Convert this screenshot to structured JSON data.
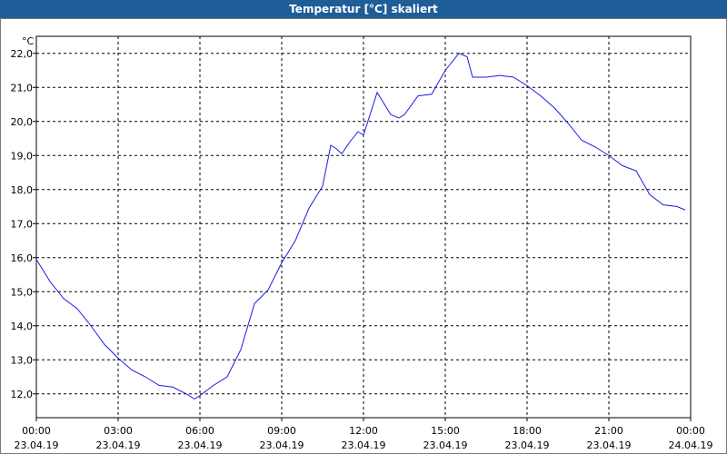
{
  "chart_data": {
    "type": "line",
    "title": "Temperatur [°C] skaliert",
    "y_unit": "°C",
    "x": [
      0,
      0.5,
      1,
      1.5,
      2,
      2.5,
      3,
      3.5,
      4,
      4.5,
      5,
      5.5,
      5.8,
      6,
      6.5,
      7,
      7.5,
      8,
      8.5,
      9,
      9.5,
      10,
      10.5,
      10.8,
      11,
      11.2,
      11.5,
      11.8,
      12,
      12.5,
      13,
      13.3,
      13.5,
      14,
      14.5,
      15,
      15.5,
      15.8,
      16,
      16.5,
      17,
      17.5,
      18,
      18.5,
      19,
      19.5,
      20,
      20.5,
      21,
      21.5,
      22,
      22.5,
      23,
      23.5,
      23.8
    ],
    "series": [
      {
        "color": "#1a1ae6",
        "values": [
          15.95,
          15.3,
          14.8,
          14.5,
          14.0,
          13.45,
          13.05,
          12.7,
          12.5,
          12.25,
          12.2,
          12.0,
          11.85,
          11.95,
          12.25,
          12.5,
          13.3,
          14.65,
          15.05,
          15.85,
          16.5,
          17.45,
          18.1,
          19.3,
          19.2,
          19.05,
          19.4,
          19.7,
          19.6,
          20.85,
          20.2,
          20.1,
          20.2,
          20.75,
          20.8,
          21.5,
          22.0,
          21.9,
          21.3,
          21.3,
          21.35,
          21.3,
          21.05,
          20.75,
          20.4,
          19.95,
          19.45,
          19.25,
          19.0,
          18.7,
          18.55,
          17.85,
          17.55,
          17.5,
          17.4
        ]
      }
    ],
    "xlim": [
      0,
      24
    ],
    "xticks": [
      {
        "value": 0,
        "label": [
          "00:00",
          "23.04.19"
        ]
      },
      {
        "value": 3,
        "label": [
          "03:00",
          "23.04.19"
        ]
      },
      {
        "value": 6,
        "label": [
          "06:00",
          "23.04.19"
        ]
      },
      {
        "value": 9,
        "label": [
          "09:00",
          "23.04.19"
        ]
      },
      {
        "value": 12,
        "label": [
          "12:00",
          "23.04.19"
        ]
      },
      {
        "value": 15,
        "label": [
          "15:00",
          "23.04.19"
        ]
      },
      {
        "value": 18,
        "label": [
          "18:00",
          "23.04.19"
        ]
      },
      {
        "value": 21,
        "label": [
          "21:00",
          "23.04.19"
        ]
      },
      {
        "value": 24,
        "label": [
          "00:00",
          "24.04.19"
        ]
      }
    ],
    "ylim": [
      11.3,
      22.5
    ],
    "yticks": [
      {
        "value": 12,
        "label": "12,0"
      },
      {
        "value": 13,
        "label": "13,0"
      },
      {
        "value": 14,
        "label": "14,0"
      },
      {
        "value": 15,
        "label": "15,0"
      },
      {
        "value": 16,
        "label": "16,0"
      },
      {
        "value": 17,
        "label": "17,0"
      },
      {
        "value": 18,
        "label": "18,0"
      },
      {
        "value": 19,
        "label": "19,0"
      },
      {
        "value": 20,
        "label": "20,0"
      },
      {
        "value": 21,
        "label": "21,0"
      },
      {
        "value": 22,
        "label": "22,0"
      }
    ],
    "grid": true
  }
}
